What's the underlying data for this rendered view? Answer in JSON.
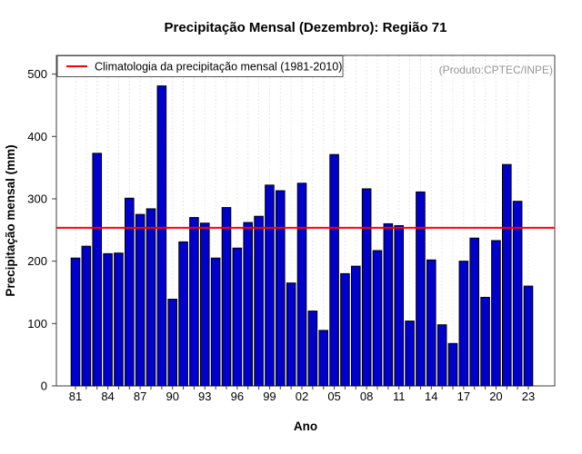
{
  "title": "Precipitação Mensal (Dezembro): Região 71",
  "watermark": "(Produto:CPTEC/INPE)",
  "legend": {
    "label": "Climatologia da precipitação mensal (1981-2010)"
  },
  "colors": {
    "bar": "#0000CD",
    "climatology_line": "#FF0000",
    "watermark_text": "#969696",
    "grid": "#cfcfcf",
    "frame": "#3c3c3c"
  },
  "chart_data": {
    "type": "bar",
    "title": "Precipitação Mensal (Dezembro): Região 71",
    "xlabel": "Ano",
    "ylabel": "Precipitação mensal (mm)",
    "ylim": [
      0,
      530
    ],
    "yticks": [
      0,
      100,
      200,
      300,
      400,
      500
    ],
    "x_tick_labels": [
      "81",
      "84",
      "87",
      "90",
      "93",
      "96",
      "99",
      "02",
      "05",
      "08",
      "11",
      "14",
      "17",
      "20",
      "23"
    ],
    "x_label_every": 3,
    "grid": "vertical-dashed",
    "legend_position": "top-left",
    "years": [
      1981,
      1982,
      1983,
      1984,
      1985,
      1986,
      1987,
      1988,
      1989,
      1990,
      1991,
      1992,
      1993,
      1994,
      1995,
      1996,
      1997,
      1998,
      1999,
      2000,
      2001,
      2002,
      2003,
      2004,
      2005,
      2006,
      2007,
      2008,
      2009,
      2010,
      2011,
      2012,
      2013,
      2014,
      2015,
      2016,
      2017,
      2018,
      2019,
      2020,
      2021,
      2022,
      2023
    ],
    "values": [
      205,
      224,
      373,
      212,
      213,
      301,
      275,
      284,
      481,
      139,
      231,
      270,
      261,
      205,
      286,
      221,
      262,
      272,
      322,
      313,
      165,
      325,
      120,
      89,
      371,
      180,
      192,
      316,
      217,
      260,
      257,
      104,
      311,
      202,
      98,
      68,
      200,
      237,
      142,
      233,
      355,
      296,
      160
    ],
    "climatology": 253.5
  }
}
